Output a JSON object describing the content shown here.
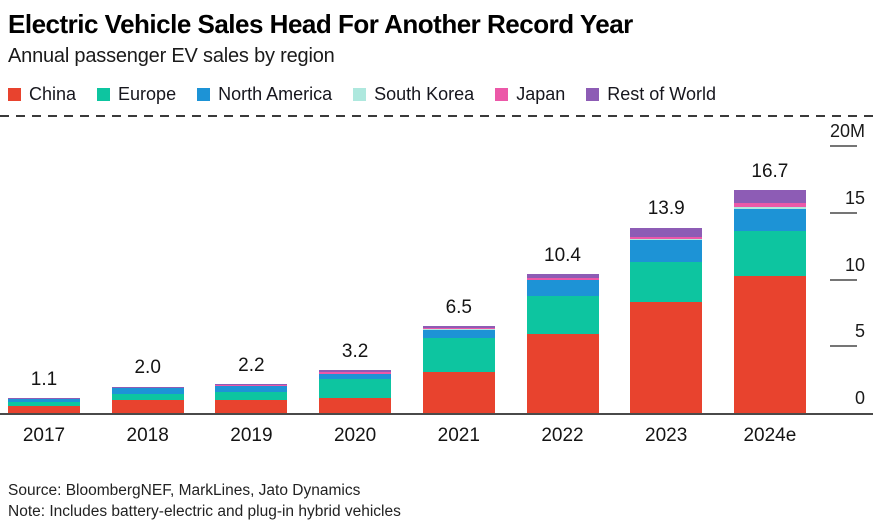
{
  "header": {
    "title": "Electric Vehicle Sales Head For Another Record Year",
    "subtitle": "Annual passenger EV sales by region"
  },
  "legend": [
    {
      "label": "China",
      "color": "#e8432e"
    },
    {
      "label": "Europe",
      "color": "#0dc5a0"
    },
    {
      "label": "North America",
      "color": "#1d93d6"
    },
    {
      "label": "South Korea",
      "color": "#aee8de"
    },
    {
      "label": "Japan",
      "color": "#ec58a8"
    },
    {
      "label": "Rest of World",
      "color": "#8d5cb5"
    }
  ],
  "chart_data": {
    "type": "bar",
    "stacked": true,
    "title": "Electric Vehicle Sales Head For Another Record Year",
    "subtitle": "Annual passenger EV sales by region",
    "unit": "million vehicles",
    "categories": [
      "2017",
      "2018",
      "2019",
      "2020",
      "2021",
      "2022",
      "2023",
      "2024e"
    ],
    "totals": [
      "1.1",
      "2.0",
      "2.2",
      "3.2",
      "6.5",
      "10.4",
      "13.9",
      "16.7"
    ],
    "series": [
      {
        "name": "China",
        "color": "#e8432e",
        "values": [
          0.5,
          1.0,
          1.0,
          1.15,
          3.1,
          5.9,
          8.3,
          10.3
        ]
      },
      {
        "name": "Europe",
        "color": "#0dc5a0",
        "values": [
          0.3,
          0.4,
          0.6,
          1.4,
          2.5,
          2.85,
          3.0,
          3.35
        ]
      },
      {
        "name": "North America",
        "color": "#1d93d6",
        "values": [
          0.22,
          0.45,
          0.45,
          0.4,
          0.65,
          1.2,
          1.65,
          1.6
        ]
      },
      {
        "name": "South Korea",
        "color": "#aee8de",
        "values": [
          0.01,
          0.01,
          0.01,
          0.01,
          0.05,
          0.05,
          0.1,
          0.15
        ]
      },
      {
        "name": "Japan",
        "color": "#ec58a8",
        "values": [
          0.02,
          0.04,
          0.04,
          0.09,
          0.1,
          0.1,
          0.15,
          0.3
        ]
      },
      {
        "name": "Rest of World",
        "color": "#8d5cb5",
        "values": [
          0.05,
          0.1,
          0.1,
          0.15,
          0.1,
          0.3,
          0.7,
          1.0
        ]
      }
    ],
    "y_axis": {
      "ticks": [
        0,
        5,
        10,
        15,
        20
      ],
      "tick_labels": [
        "0",
        "5",
        "10",
        "15",
        "20M"
      ],
      "max": 20,
      "position": "right"
    },
    "legend_position": "top",
    "grid": false
  },
  "footer": {
    "source": "Source: BloombergNEF, MarkLines, Jato Dynamics",
    "note": "Note: Includes battery-electric and plug-in hybrid vehicles"
  }
}
